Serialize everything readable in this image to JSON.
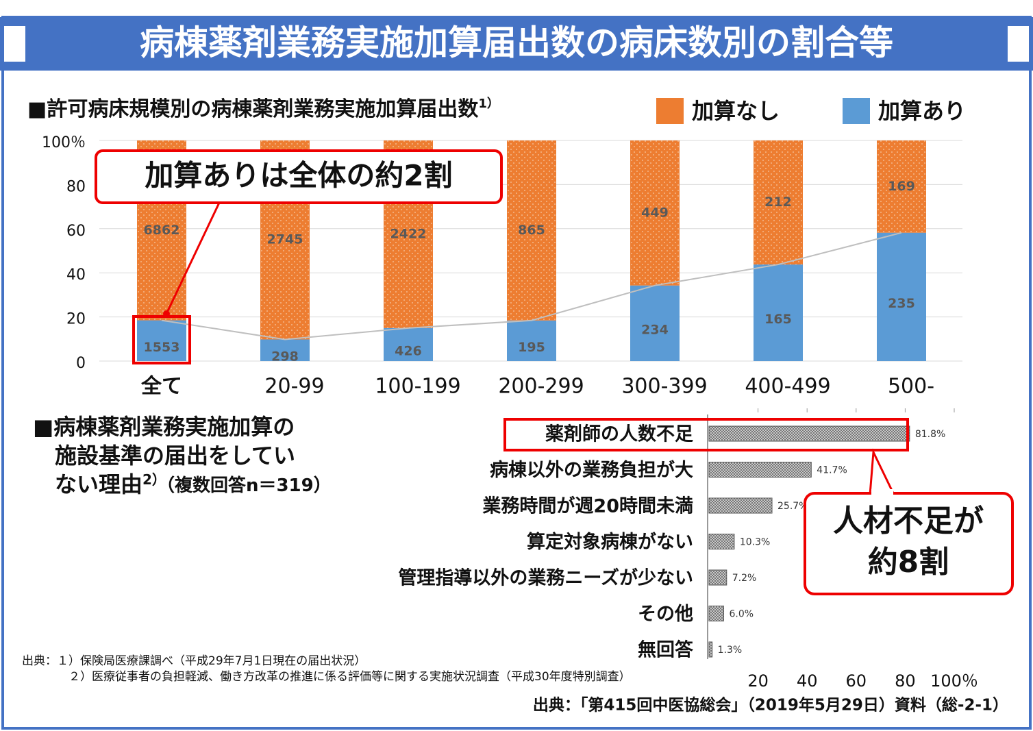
{
  "header": {
    "title": "病棟薬剤業務実施加算届出数の病床数別の割合等"
  },
  "chart_data": [
    {
      "type": "bar",
      "stacked": "percent",
      "title": "■許可病床規模別の病棟薬剤業務実施加算届出数",
      "title_note": "1）",
      "categories": [
        "全て",
        "20-99",
        "100-199",
        "200-299",
        "300-399",
        "400-499",
        "500-"
      ],
      "series": [
        {
          "name": "加算なし",
          "color": "#ed7d31",
          "values": [
            6862,
            2745,
            2422,
            865,
            449,
            212,
            169
          ]
        },
        {
          "name": "加算あり",
          "color": "#5b9bd5",
          "values": [
            1553,
            298,
            426,
            195,
            234,
            165,
            235
          ]
        }
      ],
      "ylim": [
        0,
        100
      ],
      "yticks": [
        0,
        20,
        40,
        60,
        80,
        {
          "value": 100,
          "label": "100％"
        }
      ],
      "grid": true,
      "legend": "top-right",
      "annotation": "加算ありは全体の約2割"
    },
    {
      "type": "hbar",
      "title": [
        "■病棟薬剤業務実施加算の",
        "施設基準の届出をしてい",
        "ない理由"
      ],
      "title_note": "2）",
      "subtitle": "（複数回答n＝319）",
      "categories": [
        "薬剤師の人数不足",
        "病棟以外の業務負担が大",
        "業務時間が週20時間未満",
        "算定対象病棟がない",
        "管理指導以外の業務ニーズが少ない",
        "その他",
        "無回答"
      ],
      "values": [
        81.8,
        41.7,
        25.7,
        10.3,
        7.2,
        6.0,
        1.3
      ],
      "value_labels": [
        "81.8%",
        "41.7%",
        "25.7%",
        "10.3%",
        "7.2%",
        "6.0%",
        "1.3%"
      ],
      "color": "#a6a6a6",
      "xlim": [
        0,
        100
      ],
      "xticks": [
        20,
        40,
        60,
        80,
        {
          "value": 100,
          "label": "100％"
        }
      ],
      "annotation": [
        "人材不足が",
        "約8割"
      ]
    }
  ],
  "sources": [
    "出典：１）保険局医療課調べ（平成29年7月1日現在の届出状況）",
    "２）医療従事者の負担軽減、働き方改革の推進に係る評価等に関する実施状況調査（平成30年度特別調査）",
    "出典：「第415回中医協総会」（2019年5月29日）資料（総-2-1）"
  ]
}
